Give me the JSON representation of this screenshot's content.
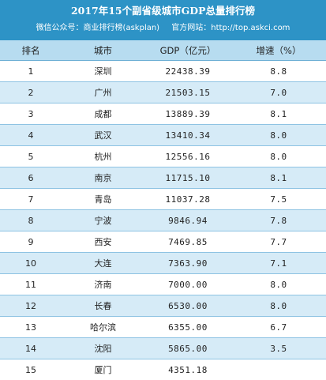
{
  "header": {
    "title": "2017年15个副省级城市GDP总量排行榜",
    "wechat": "微信公众号：商业排行榜(askplan)",
    "website": "官方网站：http://top.askci.com"
  },
  "table": {
    "columns": [
      "排名",
      "城市",
      "GDP（亿元）",
      "增速（%）"
    ],
    "rows": [
      {
        "rank": "1",
        "city": "深圳",
        "gdp": "22438.39",
        "growth": "8.8"
      },
      {
        "rank": "2",
        "city": "广州",
        "gdp": "21503.15",
        "growth": "7.0"
      },
      {
        "rank": "3",
        "city": "成都",
        "gdp": "13889.39",
        "growth": "8.1"
      },
      {
        "rank": "4",
        "city": "武汉",
        "gdp": "13410.34",
        "growth": "8.0"
      },
      {
        "rank": "5",
        "city": "杭州",
        "gdp": "12556.16",
        "growth": "8.0"
      },
      {
        "rank": "6",
        "city": "南京",
        "gdp": "11715.10",
        "growth": "8.1"
      },
      {
        "rank": "7",
        "city": "青岛",
        "gdp": "11037.28",
        "growth": "7.5"
      },
      {
        "rank": "8",
        "city": "宁波",
        "gdp": "9846.94",
        "growth": "7.8"
      },
      {
        "rank": "9",
        "city": "西安",
        "gdp": "7469.85",
        "growth": "7.7"
      },
      {
        "rank": "10",
        "city": "大连",
        "gdp": "7363.90",
        "growth": "7.1"
      },
      {
        "rank": "11",
        "city": "济南",
        "gdp": "7000.00",
        "growth": "8.0"
      },
      {
        "rank": "12",
        "city": "长春",
        "gdp": "6530.00",
        "growth": "8.0"
      },
      {
        "rank": "13",
        "city": "哈尔滨",
        "gdp": "6355.00",
        "growth": "6.7"
      },
      {
        "rank": "14",
        "city": "沈阳",
        "gdp": "5865.00",
        "growth": "3.5"
      },
      {
        "rank": "15",
        "city": "厦门",
        "gdp": "4351.18",
        "growth": ""
      }
    ]
  },
  "colors": {
    "header_bg": "#2d93c6",
    "column_header_bg": "#b7dcf0",
    "stripe_bg": "#d6ebf7"
  }
}
